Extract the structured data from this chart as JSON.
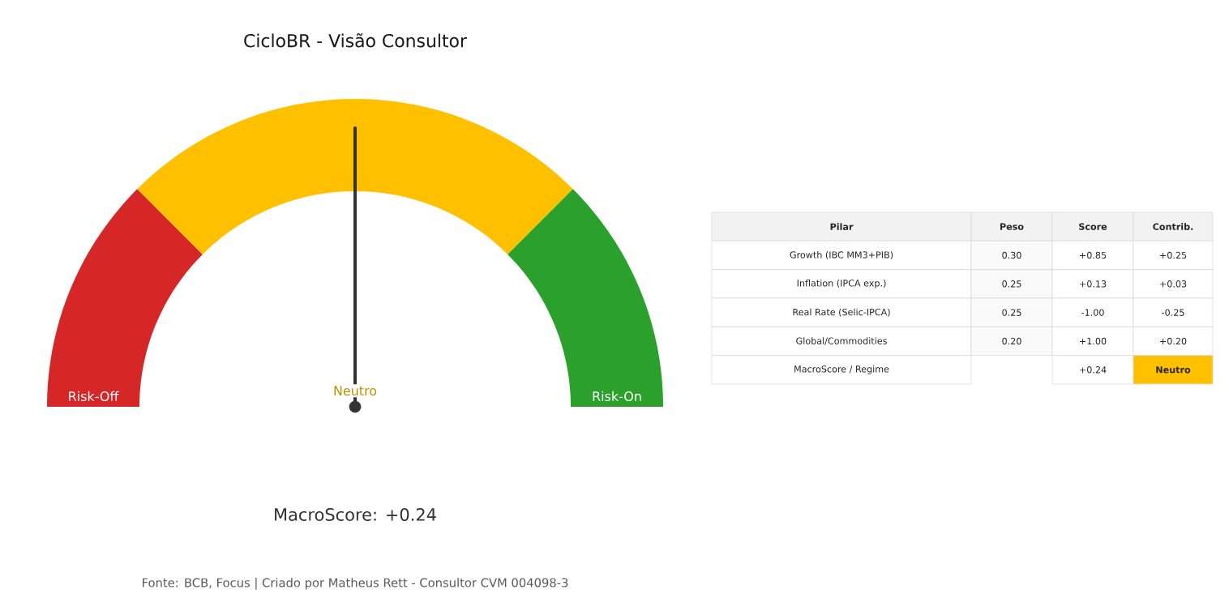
{
  "chart_data": [
    {
      "type": "donut",
      "title": "CicloBR - Visão Consultor",
      "categories": [
        "Risk-Off",
        "Neutro",
        "Risk-On"
      ],
      "values": [
        25,
        50,
        25
      ],
      "colors": [
        "#d62728",
        "#ffc000",
        "#2ca02c"
      ],
      "needle": "Neutro",
      "annotations": [
        "MacroScore: +0.24",
        "Fonte: BCB, Focus | Criado por Matheus Rett - Consultor CVM 004098-3"
      ]
    },
    {
      "type": "other",
      "categories": [
        "Pilar",
        "Peso",
        "Score",
        "Contrib."
      ],
      "y_categories": [
        "Growth (IBC MM3+PIB)",
        "Inflation (IPCA exp.)",
        "Real Rate (Selic-IPCA)",
        "Global/Commodities",
        "MacroScore / Regime"
      ],
      "cell_labels": [
        [
          "0.30",
          "+0.85",
          "+0.25"
        ],
        [
          "0.25",
          "+0.13",
          "+0.03"
        ],
        [
          "0.25",
          "-1.00",
          "-0.25"
        ],
        [
          "0.20",
          "+1.00",
          "+0.20"
        ],
        [
          null,
          "+0.24",
          "Neutro"
        ]
      ]
    }
  ]
}
